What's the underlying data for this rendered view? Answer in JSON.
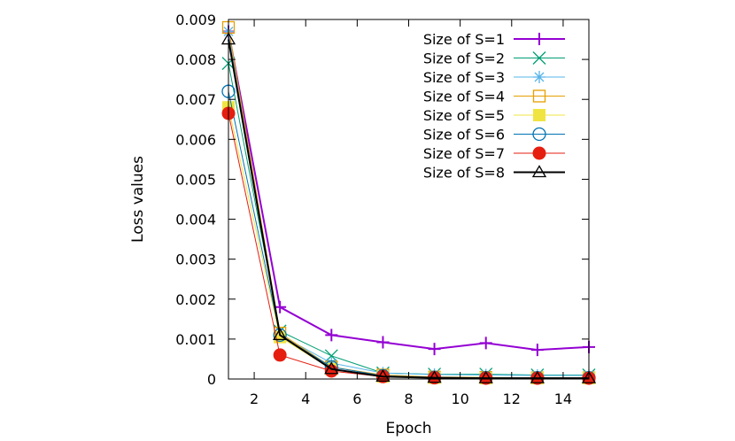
{
  "chart_data": {
    "type": "line",
    "xlabel": "Epoch",
    "ylabel": "Loss values",
    "xlim": [
      1,
      15
    ],
    "ylim": [
      0,
      0.009
    ],
    "xticks": [
      2,
      4,
      6,
      8,
      10,
      12,
      14
    ],
    "yticks": [
      0,
      0.001,
      0.002,
      0.003,
      0.004,
      0.005,
      0.006,
      0.007,
      0.008,
      0.009
    ],
    "ytick_labels": [
      "0",
      "0.001",
      "0.002",
      "0.003",
      "0.004",
      "0.005",
      "0.006",
      "0.007",
      "0.008",
      "0.009"
    ],
    "grid": false,
    "legend_position": "top-right",
    "x": [
      1,
      3,
      5,
      7,
      9,
      11,
      13,
      15
    ],
    "series": [
      {
        "name": "Size of S=1",
        "color": "#9400d3",
        "marker": "plus",
        "values": [
          0.0087,
          0.0018,
          0.0011,
          0.00092,
          0.00075,
          0.0009,
          0.00073,
          0.0008
        ]
      },
      {
        "name": "Size of S=2",
        "color": "#009e73",
        "marker": "cross",
        "values": [
          0.0079,
          0.0012,
          0.00058,
          0.00015,
          0.00012,
          0.00012,
          0.0001,
          0.0001
        ]
      },
      {
        "name": "Size of S=3",
        "color": "#56b4e9",
        "marker": "star",
        "values": [
          0.0087,
          0.0011,
          0.0004,
          0.00015,
          0.00011,
          0.0001,
          9e-05,
          9e-05
        ]
      },
      {
        "name": "Size of S=4",
        "color": "#e69f00",
        "marker": "open-square",
        "values": [
          0.0088,
          0.00115,
          0.0003,
          0.0001,
          5e-05,
          4e-05,
          3e-05,
          3e-05
        ]
      },
      {
        "name": "Size of S=5",
        "color": "#f0e442",
        "marker": "filled-square",
        "values": [
          0.0068,
          0.00105,
          0.00025,
          6e-05,
          3e-05,
          2e-05,
          2e-05,
          2e-05
        ]
      },
      {
        "name": "Size of S=6",
        "color": "#0072b2",
        "marker": "open-circle",
        "values": [
          0.0072,
          0.0011,
          0.0003,
          8e-05,
          4e-05,
          3e-05,
          3e-05,
          3e-05
        ]
      },
      {
        "name": "Size of S=7",
        "color": "#e51e10",
        "marker": "filled-circle",
        "values": [
          0.00665,
          0.0006,
          0.0002,
          6e-05,
          3e-05,
          2e-05,
          2e-05,
          2e-05
        ]
      },
      {
        "name": "Size of S=8",
        "color": "#000000",
        "marker": "open-triangle",
        "values": [
          0.0085,
          0.0011,
          0.00025,
          6e-05,
          3e-05,
          2e-05,
          2e-05,
          2e-05
        ]
      }
    ]
  }
}
